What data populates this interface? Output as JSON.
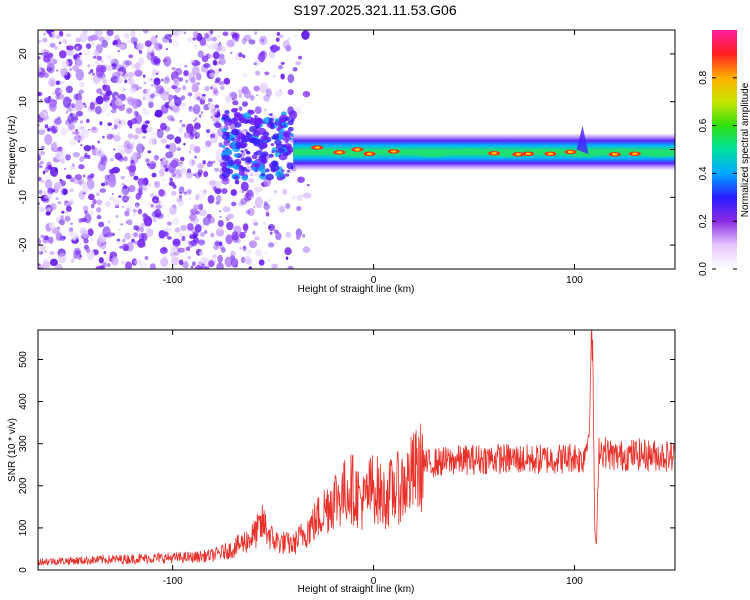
{
  "title": "S197.2025.321.11.53.G06",
  "chart_data": [
    {
      "type": "heatmap",
      "name": "spectrogram",
      "xlabel": "Height of straight line (km)",
      "ylabel": "Frequency (Hz)",
      "xlim": [
        -167,
        150
      ],
      "ylim": [
        -25,
        25
      ],
      "xticks": [
        -100,
        0,
        100
      ],
      "yticks": [
        -20,
        -10,
        0,
        10,
        20
      ],
      "colorbar": {
        "label": "Normalized spectral amplitude",
        "range": [
          0,
          1
        ],
        "ticks": [
          0.0,
          0.2,
          0.4,
          0.6,
          0.8
        ],
        "tick_labels": [
          "0.0",
          "0.2",
          "0.4",
          "0.6",
          "0.8"
        ]
      },
      "features": [
        {
          "description": "scattered noise",
          "x_range": [
            -167,
            -40
          ],
          "freq_range": [
            -25,
            25
          ],
          "amplitude": 0.2
        },
        {
          "description": "carrier band",
          "x_range": [
            -40,
            150
          ],
          "freq_center": 0,
          "amplitude": 0.9
        }
      ]
    },
    {
      "type": "line",
      "name": "snr",
      "xlabel": "Height of straight line (km)",
      "ylabel": "SNR (10 * v/v)",
      "xlim": [
        -167,
        150
      ],
      "ylim": [
        0,
        570
      ],
      "xticks": [
        -100,
        0,
        100
      ],
      "yticks": [
        0,
        100,
        200,
        300,
        400,
        500
      ],
      "color": "#e8312a",
      "series": [
        {
          "name": "SNR",
          "x": [
            -167,
            -150,
            -130,
            -110,
            -90,
            -80,
            -70,
            -60,
            -55,
            -50,
            -40,
            -30,
            -25,
            -20,
            -15,
            -12,
            -10,
            -5,
            -3,
            0,
            5,
            10,
            15,
            20,
            25,
            30,
            40,
            60,
            80,
            95,
            100,
            104,
            107,
            108,
            109,
            110,
            111,
            112,
            115,
            120,
            130,
            150
          ],
          "y": [
            20,
            22,
            25,
            28,
            30,
            35,
            50,
            80,
            110,
            70,
            60,
            110,
            140,
            170,
            180,
            200,
            190,
            160,
            180,
            200,
            170,
            190,
            200,
            230,
            250,
            255,
            260,
            265,
            262,
            265,
            270,
            260,
            320,
            480,
            560,
            100,
            50,
            290,
            280,
            270,
            275,
            270
          ]
        }
      ]
    }
  ]
}
